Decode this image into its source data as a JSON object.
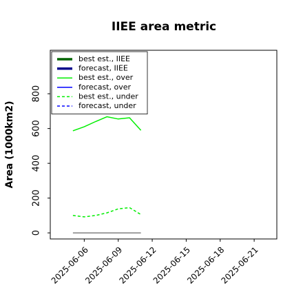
{
  "chart_data": {
    "type": "line",
    "title": "IIEE area metric",
    "ylabel": "Area (1000km2)",
    "x": [
      "2025-06-05",
      "2025-06-06",
      "2025-06-07",
      "2025-06-08",
      "2025-06-09",
      "2025-06-10",
      "2025-06-11"
    ],
    "series": [
      {
        "name": "best est., IIEE",
        "color": "#006400",
        "width": 3.5,
        "dash": "none",
        "values": [
          null,
          null,
          null,
          null,
          null,
          null,
          null
        ]
      },
      {
        "name": "forecast, IIEE",
        "color": "#00008b",
        "width": 3.5,
        "dash": "none",
        "values": [
          null,
          null,
          null,
          null,
          null,
          null,
          null
        ]
      },
      {
        "name": "best est., over",
        "color": "#00ee00",
        "width": 1.5,
        "dash": "none",
        "values": [
          587,
          610,
          640,
          668,
          655,
          662,
          590
        ]
      },
      {
        "name": "forecast, over",
        "color": "#0000ff",
        "width": 1.5,
        "dash": "none",
        "values": [
          null,
          null,
          null,
          null,
          null,
          null,
          null
        ]
      },
      {
        "name": "best est., under",
        "color": "#00ee00",
        "width": 1.5,
        "dash": "4,3",
        "values": [
          100,
          92,
          100,
          115,
          138,
          145,
          105
        ]
      },
      {
        "name": "forecast, under",
        "color": "#0000ff",
        "width": 1.5,
        "dash": "4,3",
        "values": [
          null,
          null,
          null,
          null,
          null,
          null,
          null
        ]
      },
      {
        "color": "#808080",
        "width": 1.5,
        "dash": "none",
        "values": [
          0,
          0,
          0,
          0,
          0,
          0,
          0
        ]
      }
    ],
    "xlim": [
      "2025-06-03",
      "2025-06-23"
    ],
    "xticks": [
      "2025-06-06",
      "2025-06-09",
      "2025-06-12",
      "2025-06-15",
      "2025-06-18",
      "2025-06-21"
    ],
    "xtick_label_colors": [
      "#000000",
      "#000000",
      "#228b22",
      "#000000",
      "#000000",
      "#000000"
    ],
    "ylim": [
      -35,
      1050
    ],
    "yticks": [
      0,
      200,
      400,
      600,
      800
    ],
    "legend": "upper left",
    "grid": false
  }
}
